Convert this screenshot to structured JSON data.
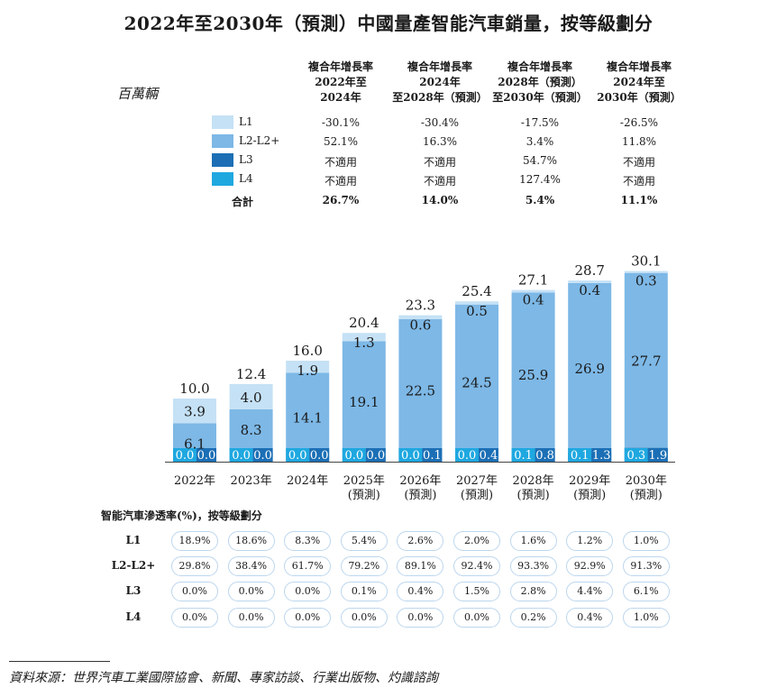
{
  "title": "2022年至2030年（預測）中國量產智能汽車銷量，按等級劃分",
  "unit": "百萬輛",
  "cagr_headers": [
    [
      "複合年增長率",
      "2022年至",
      "2024年"
    ],
    [
      "複合年增長率",
      "2024年",
      "至2028年（預測）"
    ],
    [
      "複合年增長率",
      "2028年（預測）",
      "至2030年（預測）"
    ],
    [
      "複合年增長率",
      "2024年至",
      "2030年（預測）"
    ]
  ],
  "cagr_rows": [
    {
      "name": "L1",
      "values": [
        "-30.1%",
        "-30.4%",
        "-17.5%",
        "-26.5%"
      ]
    },
    {
      "name": "L2-L2+",
      "values": [
        "52.1%",
        "16.3%",
        "3.4%",
        "11.8%"
      ]
    },
    {
      "name": "L3",
      "values": [
        "不適用",
        "不適用",
        "54.7%",
        "不適用"
      ]
    },
    {
      "name": "L4",
      "values": [
        "不適用",
        "不適用",
        "127.4%",
        "不適用"
      ]
    }
  ],
  "cagr_total": {
    "label": "合計",
    "values": [
      "26.7%",
      "14.0%",
      "5.4%",
      "11.1%"
    ]
  },
  "chart_data": {
    "type": "bar",
    "stacked": true,
    "categories": [
      [
        "2022年"
      ],
      [
        "2023年"
      ],
      [
        "2024年"
      ],
      [
        "2025年",
        "(預測)"
      ],
      [
        "2026年",
        "(預測)"
      ],
      [
        "2027年",
        "(預測)"
      ],
      [
        "2028年",
        "(預測)"
      ],
      [
        "2029年",
        "(預測)"
      ],
      [
        "2030年",
        "(預測)"
      ]
    ],
    "series": [
      {
        "name": "L4",
        "color": "#1fa8e0",
        "values": [
          0.0,
          0.0,
          0.0,
          0.0,
          0.0,
          0.0,
          0.1,
          0.1,
          0.3
        ],
        "labels": [
          "0.0",
          "0.0",
          "0.0",
          "0.0",
          "0.0",
          "0.0",
          "0.1",
          "0.1",
          "0.3"
        ]
      },
      {
        "name": "L3",
        "color": "#1c6fb5",
        "values": [
          0.0,
          0.0,
          0.0,
          0.0,
          0.1,
          0.4,
          0.8,
          1.3,
          1.9
        ],
        "labels": [
          "0.0",
          "0.0",
          "0.0",
          "0.0",
          "0.1",
          "0.4",
          "0.8",
          "1.3",
          "1.9"
        ]
      },
      {
        "name": "L2-L2+",
        "color": "#7db8e6",
        "values": [
          6.1,
          8.3,
          14.1,
          19.1,
          22.5,
          24.5,
          25.9,
          26.9,
          27.7
        ],
        "labels": [
          "6.1",
          "8.3",
          "14.1",
          "19.1",
          "22.5",
          "24.5",
          "25.9",
          "26.9",
          "27.7"
        ]
      },
      {
        "name": "L1",
        "color": "#c5e1f5",
        "values": [
          3.9,
          4.0,
          1.9,
          1.3,
          0.6,
          0.5,
          0.4,
          0.4,
          0.3
        ],
        "labels": [
          "3.9",
          "4.0",
          "1.9",
          "1.3",
          "0.6",
          "0.5",
          "0.4",
          "0.4",
          "0.3"
        ]
      }
    ],
    "totals": [
      "10.0",
      "12.4",
      "16.0",
      "20.4",
      "23.3",
      "25.4",
      "27.1",
      "28.7",
      "30.1"
    ],
    "ylim": [
      0,
      31.5
    ]
  },
  "penetration": {
    "title": "智能汽車滲透率(%)，按等級劃分",
    "rows": [
      {
        "name": "L1",
        "values": [
          "18.9%",
          "18.6%",
          "8.3%",
          "5.4%",
          "2.6%",
          "2.0%",
          "1.6%",
          "1.2%",
          "1.0%"
        ]
      },
      {
        "name": "L2-L2+",
        "values": [
          "29.8%",
          "38.4%",
          "61.7%",
          "79.2%",
          "89.1%",
          "92.4%",
          "93.3%",
          "92.9%",
          "91.3%"
        ]
      },
      {
        "name": "L3",
        "values": [
          "0.0%",
          "0.0%",
          "0.0%",
          "0.1%",
          "0.4%",
          "1.5%",
          "2.8%",
          "4.4%",
          "6.1%"
        ]
      },
      {
        "name": "L4",
        "values": [
          "0.0%",
          "0.0%",
          "0.0%",
          "0.0%",
          "0.0%",
          "0.0%",
          "0.2%",
          "0.4%",
          "1.0%"
        ]
      }
    ]
  },
  "source": "資料來源：世界汽車工業國際協會、新聞、專家訪談、行業出版物、灼識諮詢"
}
